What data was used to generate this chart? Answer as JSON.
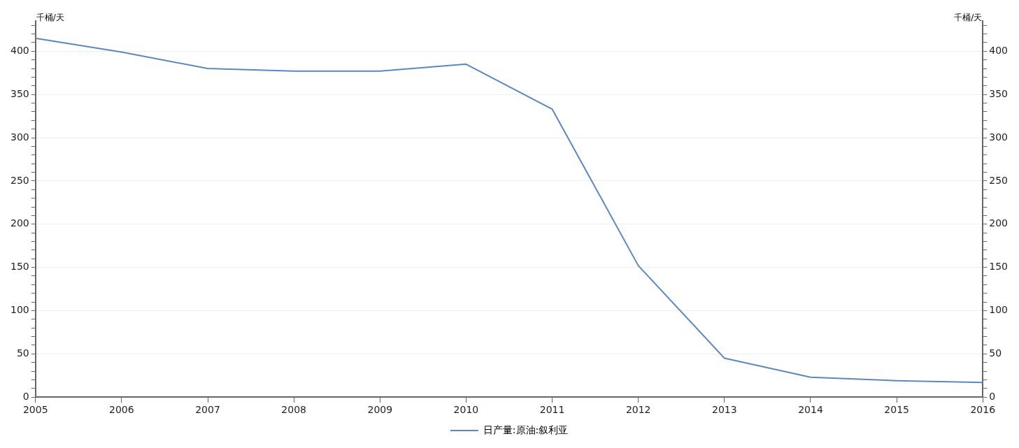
{
  "chart_data": {
    "type": "line",
    "ylabel": "千桶/天",
    "y2label": "千桶/天",
    "x": [
      2005,
      2006,
      2007,
      2008,
      2009,
      2010,
      2011,
      2012,
      2013,
      2014,
      2015,
      2016
    ],
    "series": [
      {
        "name": "日产量:原油:叙利亚",
        "color": "#5b87c5",
        "values": [
          415,
          399,
          380,
          377,
          377,
          385,
          333,
          152,
          45,
          23,
          19,
          17
        ]
      }
    ],
    "xlim": [
      2005,
      2016
    ],
    "xticks": [
      2005,
      2006,
      2007,
      2008,
      2009,
      2010,
      2011,
      2012,
      2013,
      2014,
      2015,
      2016
    ],
    "ylim": [
      0,
      435
    ],
    "yticks": [
      0,
      {
        "value": 10,
        "label": null
      },
      {
        "value": 20,
        "label": null
      },
      {
        "value": 30,
        "label": null
      },
      {
        "value": 40,
        "label": null
      },
      50,
      {
        "value": 60,
        "label": null
      },
      {
        "value": 70,
        "label": null
      },
      {
        "value": 80,
        "label": null
      },
      {
        "value": 90,
        "label": null
      },
      100,
      {
        "value": 110,
        "label": null
      },
      {
        "value": 120,
        "label": null
      },
      {
        "value": 130,
        "label": null
      },
      {
        "value": 140,
        "label": null
      },
      150,
      {
        "value": 160,
        "label": null
      },
      {
        "value": 170,
        "label": null
      },
      {
        "value": 180,
        "label": null
      },
      {
        "value": 190,
        "label": null
      },
      200,
      {
        "value": 210,
        "label": null
      },
      {
        "value": 220,
        "label": null
      },
      {
        "value": 230,
        "label": null
      },
      {
        "value": 240,
        "label": null
      },
      250,
      {
        "value": 260,
        "label": null
      },
      {
        "value": 270,
        "label": null
      },
      {
        "value": 280,
        "label": null
      },
      {
        "value": 290,
        "label": null
      },
      300,
      {
        "value": 310,
        "label": null
      },
      {
        "value": 320,
        "label": null
      },
      {
        "value": 330,
        "label": null
      },
      {
        "value": 340,
        "label": null
      },
      350,
      {
        "value": 360,
        "label": null
      },
      {
        "value": 370,
        "label": null
      },
      {
        "value": 380,
        "label": null
      },
      {
        "value": 390,
        "label": null
      },
      400,
      {
        "value": 410,
        "label": null
      },
      {
        "value": 420,
        "label": null
      },
      {
        "value": 430,
        "label": null
      }
    ],
    "y2lim": [
      0,
      435
    ],
    "y2ticks": [
      0,
      {
        "value": 10,
        "label": null
      },
      {
        "value": 20,
        "label": null
      },
      {
        "value": 30,
        "label": null
      },
      {
        "value": 40,
        "label": null
      },
      50,
      {
        "value": 60,
        "label": null
      },
      {
        "value": 70,
        "label": null
      },
      {
        "value": 80,
        "label": null
      },
      {
        "value": 90,
        "label": null
      },
      100,
      {
        "value": 110,
        "label": null
      },
      {
        "value": 120,
        "label": null
      },
      {
        "value": 130,
        "label": null
      },
      {
        "value": 140,
        "label": null
      },
      150,
      {
        "value": 160,
        "label": null
      },
      {
        "value": 170,
        "label": null
      },
      {
        "value": 180,
        "label": null
      },
      {
        "value": 190,
        "label": null
      },
      200,
      {
        "value": 210,
        "label": null
      },
      {
        "value": 220,
        "label": null
      },
      {
        "value": 230,
        "label": null
      },
      {
        "value": 240,
        "label": null
      },
      250,
      {
        "value": 260,
        "label": null
      },
      {
        "value": 270,
        "label": null
      },
      {
        "value": 280,
        "label": null
      },
      {
        "value": 290,
        "label": null
      },
      300,
      {
        "value": 310,
        "label": null
      },
      {
        "value": 320,
        "label": null
      },
      {
        "value": 330,
        "label": null
      },
      {
        "value": 340,
        "label": null
      },
      350,
      {
        "value": 360,
        "label": null
      },
      {
        "value": 370,
        "label": null
      },
      {
        "value": 380,
        "label": null
      },
      {
        "value": 390,
        "label": null
      },
      400,
      {
        "value": 410,
        "label": null
      },
      {
        "value": 420,
        "label": null
      },
      {
        "value": 430,
        "label": null
      }
    ],
    "grid": "y",
    "legend": "bottom",
    "marker": "none",
    "line_style": "solid"
  }
}
